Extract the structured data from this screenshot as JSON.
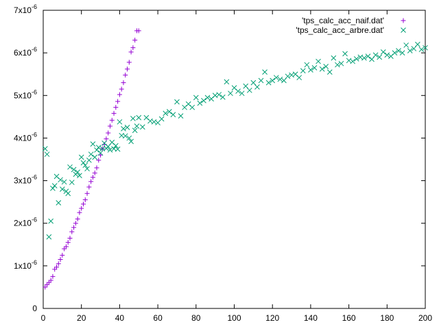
{
  "chart_data": {
    "type": "scatter",
    "title": "",
    "xlabel": "",
    "ylabel": "",
    "xlim": [
      0,
      200
    ],
    "ylim": [
      0,
      7e-06
    ],
    "grid": false,
    "legend_position": "top-right",
    "x_ticks": [
      0,
      20,
      40,
      60,
      80,
      100,
      120,
      140,
      160,
      180,
      200
    ],
    "x_tick_labels": [
      "0",
      "20",
      "40",
      "60",
      "80",
      "100",
      "120",
      "140",
      "160",
      "180",
      "200"
    ],
    "y_ticks": [
      0,
      1e-06,
      2e-06,
      3e-06,
      4e-06,
      5e-06,
      6e-06,
      7e-06
    ],
    "y_tick_labels": [
      {
        "mantissa": "0",
        "exponent": ""
      },
      {
        "mantissa": "1x10",
        "exponent": "-6"
      },
      {
        "mantissa": "2x10",
        "exponent": "-6"
      },
      {
        "mantissa": "3x10",
        "exponent": "-6"
      },
      {
        "mantissa": "4x10",
        "exponent": "-6"
      },
      {
        "mantissa": "5x10",
        "exponent": "-6"
      },
      {
        "mantissa": "6x10",
        "exponent": "-6"
      },
      {
        "mantissa": "7x10",
        "exponent": "-6"
      }
    ],
    "series": [
      {
        "name": "'tps_calc_acc_naif.dat'",
        "marker": "plus",
        "color": "#9400d3",
        "x": [
          1,
          2,
          3,
          4,
          5,
          6,
          7,
          8,
          9,
          10,
          11,
          12,
          13,
          14,
          15,
          16,
          17,
          18,
          19,
          20,
          21,
          22,
          23,
          24,
          25,
          26,
          27,
          28,
          29,
          30,
          31,
          32,
          33,
          34,
          35,
          36,
          37,
          38,
          39,
          40,
          41,
          42,
          43,
          44,
          45,
          46,
          47,
          48,
          49,
          50
        ],
        "y": [
          5e-07,
          5.6e-07,
          6.1e-07,
          6.6e-07,
          7.5e-07,
          9.2e-07,
          9.7e-07,
          1.05e-06,
          1.15e-06,
          1.25e-06,
          1.4e-06,
          1.45e-06,
          1.55e-06,
          1.65e-06,
          1.8e-06,
          1.9e-06,
          2e-06,
          2.1e-06,
          2.25e-06,
          2.35e-06,
          2.45e-06,
          2.55e-06,
          2.7e-06,
          2.85e-06,
          2.98e-06,
          3.08e-06,
          3.18e-06,
          3.3e-06,
          3.48e-06,
          3.6e-06,
          3.75e-06,
          3.85e-06,
          3.98e-06,
          4.12e-06,
          4.28e-06,
          4.42e-06,
          4.58e-06,
          4.72e-06,
          4.86e-06,
          5.02e-06,
          5.15e-06,
          5.3e-06,
          5.48e-06,
          5.62e-06,
          5.78e-06,
          6.02e-06,
          6.12e-06,
          6.3e-06,
          6.52e-06,
          6.52e-06
        ]
      },
      {
        "name": "'tps_calc_acc_arbre.dat'",
        "marker": "cross",
        "color": "#009e73",
        "x": [
          1,
          2,
          3,
          4,
          5,
          6,
          7,
          8,
          9,
          10,
          11,
          12,
          13,
          14,
          15,
          16,
          17,
          18,
          19,
          20,
          21,
          22,
          23,
          24,
          25,
          26,
          27,
          28,
          29,
          30,
          31,
          32,
          33,
          34,
          35,
          36,
          37,
          38,
          39,
          40,
          41,
          42,
          43,
          44,
          45,
          46,
          47,
          48,
          49,
          50,
          52,
          54,
          56,
          58,
          60,
          62,
          64,
          66,
          68,
          70,
          72,
          74,
          76,
          78,
          80,
          82,
          84,
          86,
          88,
          90,
          92,
          94,
          96,
          98,
          100,
          102,
          104,
          106,
          108,
          110,
          112,
          114,
          116,
          118,
          120,
          122,
          124,
          126,
          128,
          130,
          132,
          134,
          136,
          138,
          140,
          142,
          144,
          146,
          148,
          150,
          152,
          154,
          156,
          158,
          160,
          162,
          164,
          166,
          168,
          170,
          172,
          174,
          176,
          178,
          180,
          182,
          184,
          186,
          188,
          190,
          192,
          194,
          196,
          198,
          200
        ],
        "y": [
          3.75e-06,
          3.62e-06,
          1.68e-06,
          2.05e-06,
          2.82e-06,
          2.88e-06,
          3.1e-06,
          2.48e-06,
          3.02e-06,
          2.8e-06,
          2.97e-06,
          2.75e-06,
          2.7e-06,
          3.32e-06,
          2.96e-06,
          3.26e-06,
          3.15e-06,
          3.2e-06,
          3.12e-06,
          3.55e-06,
          3.42e-06,
          3.36e-06,
          3.28e-06,
          3.48e-06,
          3.62e-06,
          3.86e-06,
          3.55e-06,
          3.72e-06,
          3.78e-06,
          3.65e-06,
          3.75e-06,
          3.88e-06,
          3.76e-06,
          3.8e-06,
          3.72e-06,
          3.9e-06,
          3.75e-06,
          3.82e-06,
          3.74e-06,
          4.38e-06,
          4.06e-06,
          4.22e-06,
          4.05e-06,
          4.25e-06,
          4e-06,
          3.92e-06,
          4.46e-06,
          4.18e-06,
          4.28e-06,
          4.48e-06,
          4.26e-06,
          4.48e-06,
          4.4e-06,
          4.38e-06,
          4.36e-06,
          4.45e-06,
          4.58e-06,
          4.62e-06,
          4.55e-06,
          4.85e-06,
          4.52e-06,
          4.72e-06,
          4.8e-06,
          4.72e-06,
          4.95e-06,
          4.82e-06,
          4.88e-06,
          4.95e-06,
          4.92e-06,
          5e-06,
          5.02e-06,
          4.96e-06,
          5.32e-06,
          5.05e-06,
          5.18e-06,
          5.1e-06,
          5.05e-06,
          5.22e-06,
          5.12e-06,
          5.3e-06,
          5.2e-06,
          5.35e-06,
          5.55e-06,
          5.3e-06,
          5.35e-06,
          5.42e-06,
          5.38e-06,
          5.35e-06,
          5.45e-06,
          5.48e-06,
          5.5e-06,
          5.42e-06,
          5.58e-06,
          5.72e-06,
          5.6e-06,
          5.65e-06,
          5.8e-06,
          5.62e-06,
          5.68e-06,
          5.55e-06,
          5.88e-06,
          5.72e-06,
          5.75e-06,
          5.98e-06,
          5.82e-06,
          5.8e-06,
          5.86e-06,
          5.9e-06,
          5.88e-06,
          5.92e-06,
          5.85e-06,
          5.95e-06,
          5.9e-06,
          6.02e-06,
          5.95e-06,
          5.92e-06,
          6e-06,
          6.05e-06,
          6e-06,
          6.18e-06,
          6.05e-06,
          6.1e-06,
          6.2e-06,
          6.08e-06,
          6.12e-06
        ]
      }
    ]
  }
}
